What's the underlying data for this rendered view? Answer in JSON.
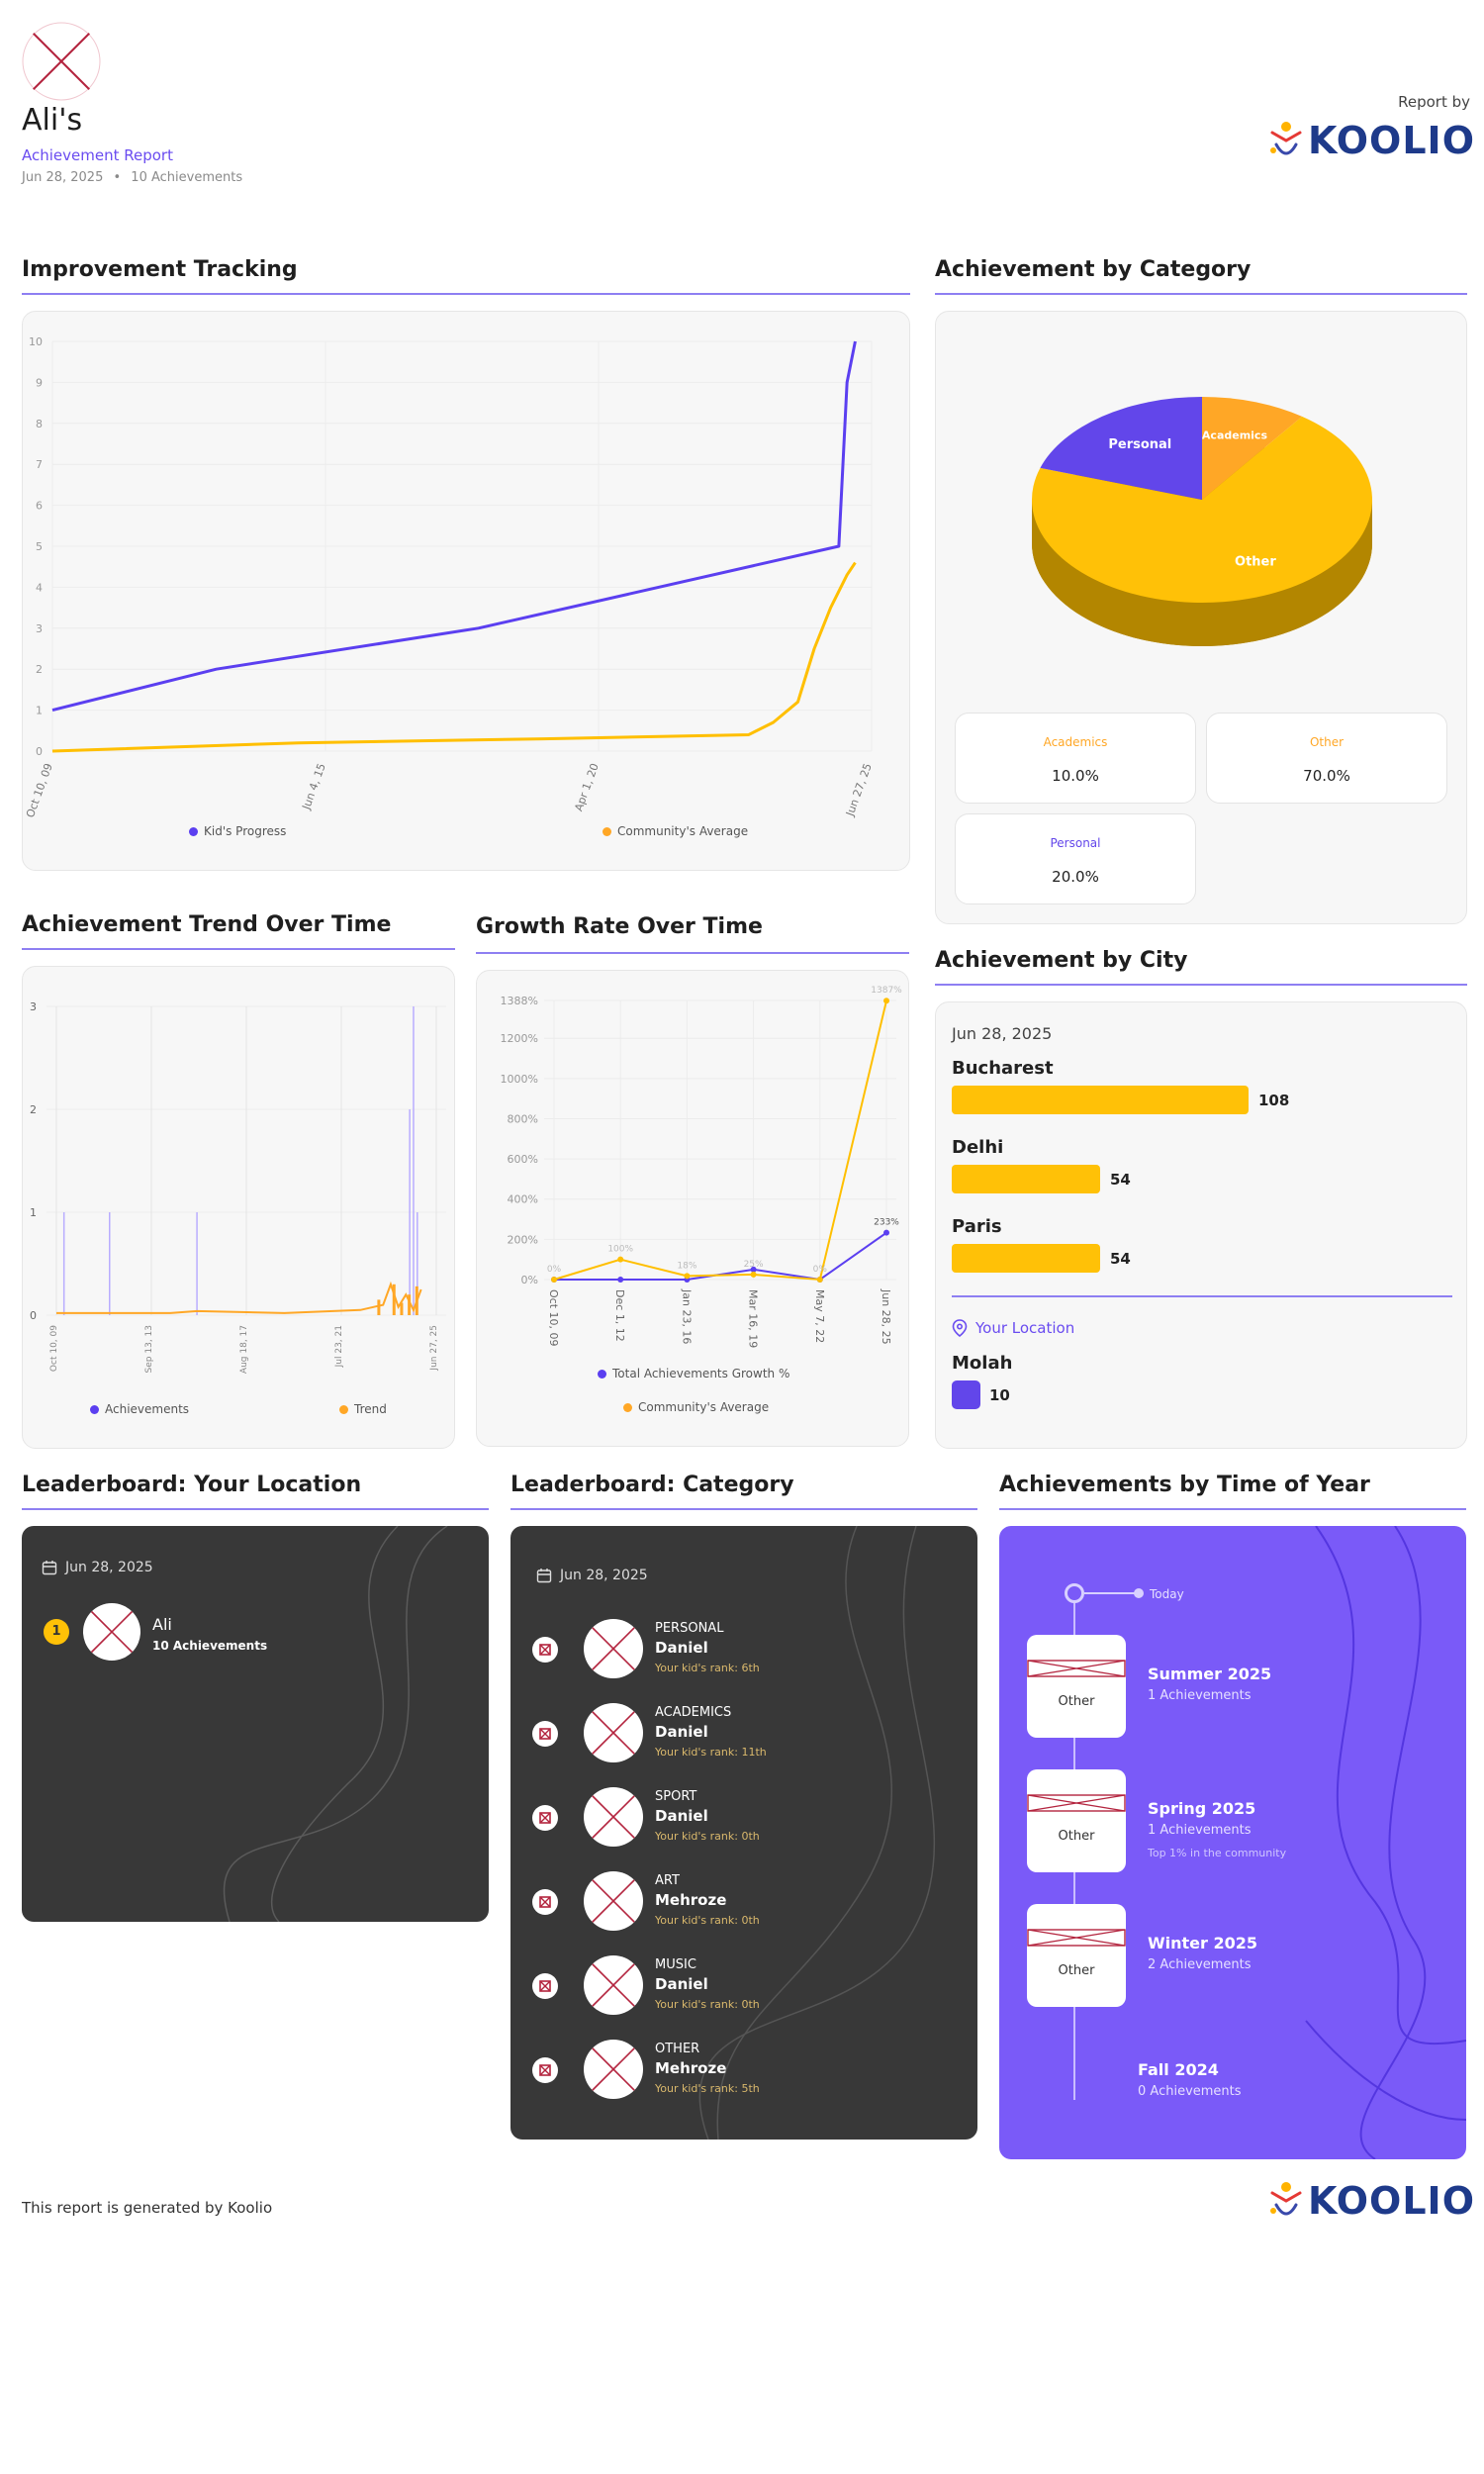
{
  "header": {
    "name": "Ali's",
    "subtitle": "Achievement Report",
    "date": "Jun 28, 2025",
    "achievements_count": "10 Achievements",
    "report_by": "Report by",
    "brand": "KOOLIO"
  },
  "sections": {
    "improvement": "Improvement Tracking",
    "category": "Achievement by Category",
    "trend": "Achievement Trend Over Time",
    "growth": "Growth Rate Over Time",
    "city": "Achievement by City",
    "lb_location": "Leaderboard: Your Location",
    "lb_category": "Leaderboard: Category",
    "time_of_year": "Achievements by Time of Year"
  },
  "chart_data": [
    {
      "id": "improvement",
      "type": "line",
      "title": "Improvement Tracking",
      "x": [
        "Oct 10, 09",
        "Jun 4, 15",
        "Apr 1, 20",
        "Jun 27, 25"
      ],
      "yticks": [
        "0",
        "1",
        "2",
        "3",
        "4",
        "5",
        "6",
        "7",
        "8",
        "9",
        "10"
      ],
      "ylim": [
        0,
        10
      ],
      "series": [
        {
          "name": "Kid's Progress",
          "color": "#5b3ff0",
          "points": [
            [
              0,
              1
            ],
            [
              0.2,
              2
            ],
            [
              0.52,
              3
            ],
            [
              0.96,
              5
            ],
            [
              0.97,
              9
            ],
            [
              0.98,
              10
            ]
          ]
        },
        {
          "name": "Community's Average",
          "color": "#ffbf00",
          "points": [
            [
              0,
              0
            ],
            [
              0.3,
              0.2
            ],
            [
              0.6,
              0.3
            ],
            [
              0.85,
              0.4
            ],
            [
              0.88,
              0.7
            ],
            [
              0.91,
              1.2
            ],
            [
              0.93,
              2.5
            ],
            [
              0.95,
              3.5
            ],
            [
              0.97,
              4.3
            ],
            [
              0.98,
              4.6
            ]
          ]
        }
      ]
    },
    {
      "id": "category",
      "type": "pie",
      "title": "Achievement by Category",
      "slices": [
        {
          "label": "Academics",
          "value": 10.0,
          "color": "#ffa726"
        },
        {
          "label": "Other",
          "value": 70.0,
          "color": "#ffc107"
        },
        {
          "label": "Personal",
          "value": 20.0,
          "color": "#6246ea"
        }
      ]
    },
    {
      "id": "trend",
      "type": "bar",
      "title": "Achievement Trend Over Time",
      "x": [
        "Oct 10, 09",
        "Sep 13, 13",
        "Aug 18, 17",
        "Jul 23, 21",
        "Jun 27, 25"
      ],
      "yticks": [
        "0",
        "1",
        "2",
        "3"
      ],
      "ylim": [
        0,
        3
      ],
      "series": [
        {
          "name": "Achievements",
          "color": "#5b3ff0"
        },
        {
          "name": "Trend",
          "color": "#ffa726"
        }
      ]
    },
    {
      "id": "growth",
      "type": "line",
      "title": "Growth Rate Over Time",
      "x": [
        "Oct 10, 09",
        "Dec 1, 12",
        "Jan 23, 16",
        "Mar 16, 19",
        "May 7, 22",
        "Jun 28, 25"
      ],
      "yticks": [
        "0%",
        "200%",
        "400%",
        "600%",
        "800%",
        "1000%",
        "1200%",
        "1388%"
      ],
      "ylim": [
        0,
        1388
      ],
      "series": [
        {
          "name": "Total Achievements Growth %",
          "color": "#5b3ff0",
          "values": [
            0,
            0,
            0,
            50,
            0,
            233
          ],
          "labels": [
            "",
            "",
            "",
            "",
            "",
            "233%"
          ]
        },
        {
          "name": "Community's Average",
          "color": "#ffbf00",
          "values": [
            0,
            100,
            18,
            25,
            0,
            1387
          ],
          "labels": [
            "0%",
            "100%",
            "18%",
            "25%",
            "0%",
            "1387%"
          ]
        }
      ]
    }
  ],
  "category_stats": [
    {
      "label": "Academics",
      "value": "10.0%",
      "color": "#ffa726"
    },
    {
      "label": "Other",
      "value": "70.0%",
      "color": "#ffa726"
    },
    {
      "label": "Personal",
      "value": "20.0%",
      "color": "#6246ea"
    }
  ],
  "city": {
    "date": "Jun 28, 2025",
    "items": [
      {
        "name": "Bucharest",
        "value": 108
      },
      {
        "name": "Delhi",
        "value": 54
      },
      {
        "name": "Paris",
        "value": 54
      }
    ],
    "your_location_label": "Your Location",
    "location_name": "Molah",
    "location_value": "10"
  },
  "lb_location": {
    "date": "Jun 28, 2025",
    "entries": [
      {
        "rank": "1",
        "name": "Ali",
        "detail": "10 Achievements"
      }
    ]
  },
  "lb_category": {
    "date": "Jun 28, 2025",
    "entries": [
      {
        "category": "PERSONAL",
        "name": "Daniel",
        "rank": "Your kid's rank: 6th"
      },
      {
        "category": "ACADEMICS",
        "name": "Daniel",
        "rank": "Your kid's rank: 11th"
      },
      {
        "category": "SPORT",
        "name": "Daniel",
        "rank": "Your kid's rank: 0th"
      },
      {
        "category": "ART",
        "name": "Mehroze",
        "rank": "Your kid's rank: 0th"
      },
      {
        "category": "MUSIC",
        "name": "Daniel",
        "rank": "Your kid's rank: 0th"
      },
      {
        "category": "OTHER",
        "name": "Mehroze",
        "rank": "Your kid's rank: 5th"
      }
    ]
  },
  "time_of_year": {
    "today": "Today",
    "seasons": [
      {
        "name": "Summer 2025",
        "count": "1 Achievements",
        "card": "Other",
        "note": ""
      },
      {
        "name": "Spring 2025",
        "count": "1 Achievements",
        "card": "Other",
        "note": "Top 1% in the community"
      },
      {
        "name": "Winter 2025",
        "count": "2 Achievements",
        "card": "Other",
        "note": ""
      },
      {
        "name": "Fall 2024",
        "count": "0 Achievements",
        "card": "",
        "note": ""
      }
    ]
  },
  "footer": {
    "text": "This report is generated by Koolio",
    "brand": "KOOLIO"
  }
}
